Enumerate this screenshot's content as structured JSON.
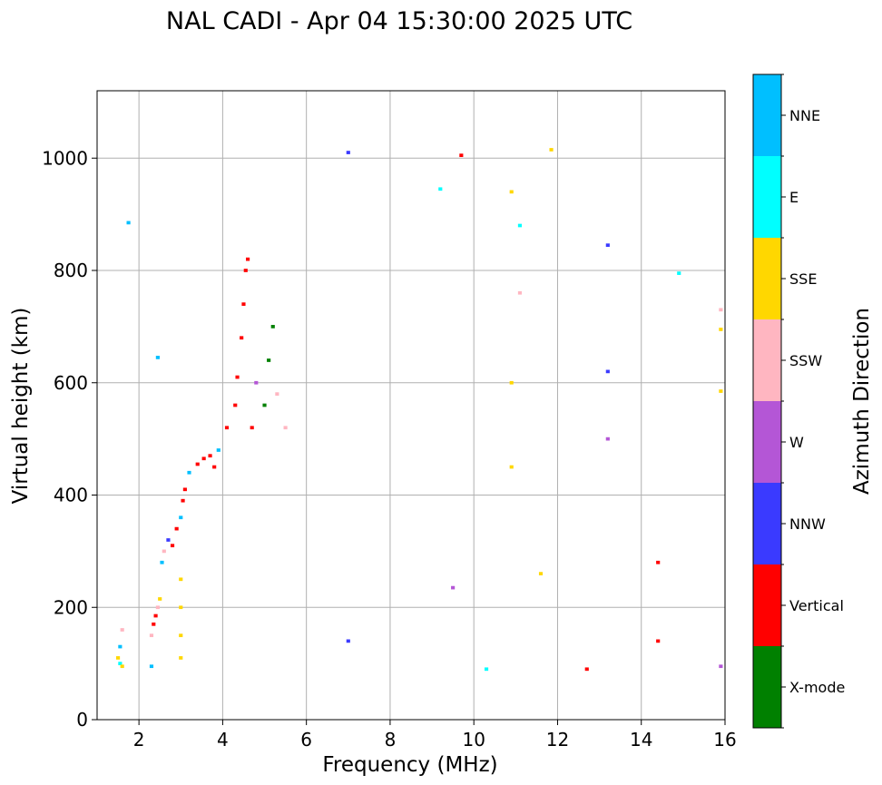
{
  "chart_data": {
    "type": "scatter",
    "title": "NAL CADI - Apr 04 15:30:00 2025 UTC",
    "xlabel": "Frequency (MHz)",
    "ylabel": "Virtual height (km)",
    "xlim": [
      1,
      16
    ],
    "ylim": [
      0,
      1120
    ],
    "xticks": [
      2,
      4,
      6,
      8,
      10,
      12,
      14,
      16
    ],
    "yticks": [
      0,
      200,
      400,
      600,
      800,
      1000
    ],
    "grid": true,
    "colorbar": {
      "label": "Azimuth Direction",
      "categories": [
        {
          "name": "X-mode",
          "color": "#008000"
        },
        {
          "name": "Vertical",
          "color": "#ff0000"
        },
        {
          "name": "NNW",
          "color": "#3a3aff"
        },
        {
          "name": "W",
          "color": "#b456d6"
        },
        {
          "name": "SSW",
          "color": "#ffb6c1"
        },
        {
          "name": "SSE",
          "color": "#ffd700"
        },
        {
          "name": "E",
          "color": "#00ffff"
        },
        {
          "name": "NNE",
          "color": "#00bfff"
        }
      ]
    },
    "echoes": [
      {
        "f": 1.5,
        "h": 110,
        "c": 5
      },
      {
        "f": 1.55,
        "h": 100,
        "c": 6
      },
      {
        "f": 1.6,
        "h": 95,
        "c": 5
      },
      {
        "f": 1.55,
        "h": 130,
        "c": 7
      },
      {
        "f": 1.6,
        "h": 160,
        "c": 4
      },
      {
        "f": 1.75,
        "h": 885,
        "c": 7
      },
      {
        "f": 2.3,
        "h": 95,
        "c": 7
      },
      {
        "f": 2.3,
        "h": 150,
        "c": 4
      },
      {
        "f": 2.35,
        "h": 170,
        "c": 1
      },
      {
        "f": 2.4,
        "h": 185,
        "c": 1
      },
      {
        "f": 2.45,
        "h": 200,
        "c": 4
      },
      {
        "f": 2.5,
        "h": 215,
        "c": 5
      },
      {
        "f": 2.45,
        "h": 645,
        "c": 7
      },
      {
        "f": 2.55,
        "h": 280,
        "c": 7
      },
      {
        "f": 2.6,
        "h": 300,
        "c": 4
      },
      {
        "f": 2.7,
        "h": 320,
        "c": 2
      },
      {
        "f": 2.8,
        "h": 310,
        "c": 1
      },
      {
        "f": 2.9,
        "h": 340,
        "c": 1
      },
      {
        "f": 3.0,
        "h": 360,
        "c": 7
      },
      {
        "f": 3.0,
        "h": 250,
        "c": 5
      },
      {
        "f": 3.0,
        "h": 200,
        "c": 5
      },
      {
        "f": 3.0,
        "h": 150,
        "c": 5
      },
      {
        "f": 3.0,
        "h": 110,
        "c": 5
      },
      {
        "f": 3.05,
        "h": 390,
        "c": 1
      },
      {
        "f": 3.1,
        "h": 410,
        "c": 1
      },
      {
        "f": 3.2,
        "h": 440,
        "c": 7
      },
      {
        "f": 3.4,
        "h": 455,
        "c": 1
      },
      {
        "f": 3.55,
        "h": 465,
        "c": 1
      },
      {
        "f": 3.7,
        "h": 470,
        "c": 1
      },
      {
        "f": 3.8,
        "h": 450,
        "c": 1
      },
      {
        "f": 3.9,
        "h": 480,
        "c": 7
      },
      {
        "f": 4.1,
        "h": 520,
        "c": 1
      },
      {
        "f": 4.3,
        "h": 560,
        "c": 1
      },
      {
        "f": 4.35,
        "h": 610,
        "c": 1
      },
      {
        "f": 4.45,
        "h": 680,
        "c": 1
      },
      {
        "f": 4.5,
        "h": 740,
        "c": 1
      },
      {
        "f": 4.55,
        "h": 800,
        "c": 1
      },
      {
        "f": 4.6,
        "h": 820,
        "c": 1
      },
      {
        "f": 4.7,
        "h": 520,
        "c": 1
      },
      {
        "f": 4.8,
        "h": 600,
        "c": 3
      },
      {
        "f": 5.0,
        "h": 560,
        "c": 0
      },
      {
        "f": 5.1,
        "h": 640,
        "c": 0
      },
      {
        "f": 5.2,
        "h": 700,
        "c": 0
      },
      {
        "f": 5.3,
        "h": 580,
        "c": 4
      },
      {
        "f": 5.5,
        "h": 520,
        "c": 4
      },
      {
        "f": 7.0,
        "h": 1010,
        "c": 2
      },
      {
        "f": 7.0,
        "h": 140,
        "c": 2
      },
      {
        "f": 9.2,
        "h": 945,
        "c": 6
      },
      {
        "f": 9.7,
        "h": 1005,
        "c": 1
      },
      {
        "f": 9.5,
        "h": 235,
        "c": 3
      },
      {
        "f": 10.9,
        "h": 940,
        "c": 5
      },
      {
        "f": 10.9,
        "h": 600,
        "c": 5
      },
      {
        "f": 10.9,
        "h": 450,
        "c": 5
      },
      {
        "f": 11.1,
        "h": 880,
        "c": 6
      },
      {
        "f": 11.1,
        "h": 760,
        "c": 4
      },
      {
        "f": 11.6,
        "h": 260,
        "c": 5
      },
      {
        "f": 11.85,
        "h": 1015,
        "c": 5
      },
      {
        "f": 13.2,
        "h": 845,
        "c": 2
      },
      {
        "f": 13.2,
        "h": 620,
        "c": 2
      },
      {
        "f": 13.2,
        "h": 500,
        "c": 3
      },
      {
        "f": 14.4,
        "h": 280,
        "c": 1
      },
      {
        "f": 14.4,
        "h": 140,
        "c": 1
      },
      {
        "f": 14.9,
        "h": 795,
        "c": 6
      },
      {
        "f": 15.9,
        "h": 730,
        "c": 4
      },
      {
        "f": 15.9,
        "h": 695,
        "c": 5
      },
      {
        "f": 15.9,
        "h": 585,
        "c": 5
      },
      {
        "f": 15.9,
        "h": 95,
        "c": 3
      },
      {
        "f": 12.7,
        "h": 90,
        "c": 1
      },
      {
        "f": 10.3,
        "h": 90,
        "c": 6
      }
    ]
  }
}
